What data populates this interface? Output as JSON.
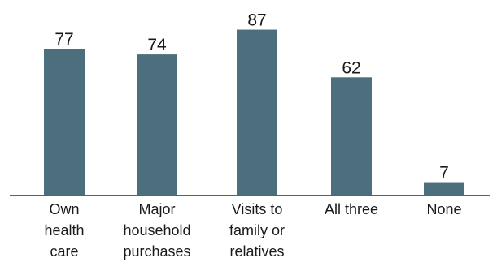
{
  "chart_data": {
    "type": "bar",
    "categories": [
      [
        "Own",
        "health",
        "care"
      ],
      [
        "Major",
        "household",
        "purchases"
      ],
      [
        "Visits to",
        "family or",
        "relatives"
      ],
      [
        "All three"
      ],
      [
        "None"
      ]
    ],
    "values": [
      77,
      74,
      87,
      62,
      7
    ],
    "ylim": [
      0,
      100
    ],
    "grid": false,
    "bar_color": "#4d6e7d"
  }
}
